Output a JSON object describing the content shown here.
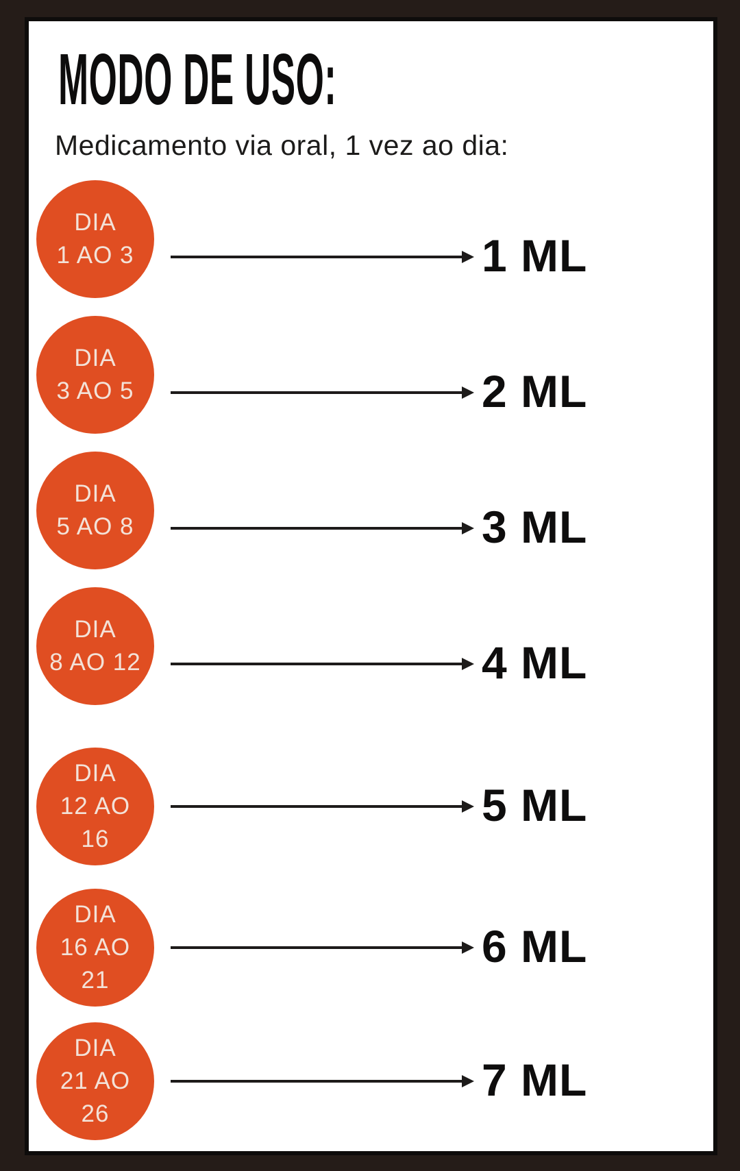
{
  "header": {
    "title": "MODO DE USO:",
    "subtitle": "Medicamento via oral, 1 vez ao dia:"
  },
  "rows": [
    {
      "day": "DIA\n1 AO 3",
      "dose": "1 ML"
    },
    {
      "day": "DIA\n3 AO 5",
      "dose": "2 ML"
    },
    {
      "day": "DIA\n5 AO 8",
      "dose": "3 ML"
    },
    {
      "day": "DIA\n8 AO 12",
      "dose": "4 ML"
    },
    {
      "day": "DIA\n12 AO\n16",
      "dose": "5 ML"
    },
    {
      "day": "DIA\n16 AO\n21",
      "dose": "6 ML"
    },
    {
      "day": "DIA\n21 AO\n26",
      "dose": "7 ML"
    }
  ],
  "colors": {
    "circle": "#e04e22",
    "circle_text": "#f3e2d8",
    "frame_background": "#251c18",
    "panel_background": "#ffffff",
    "panel_border": "#0e0c0b",
    "text": "#0d0c0c",
    "arrow": "#1d1b1a"
  }
}
